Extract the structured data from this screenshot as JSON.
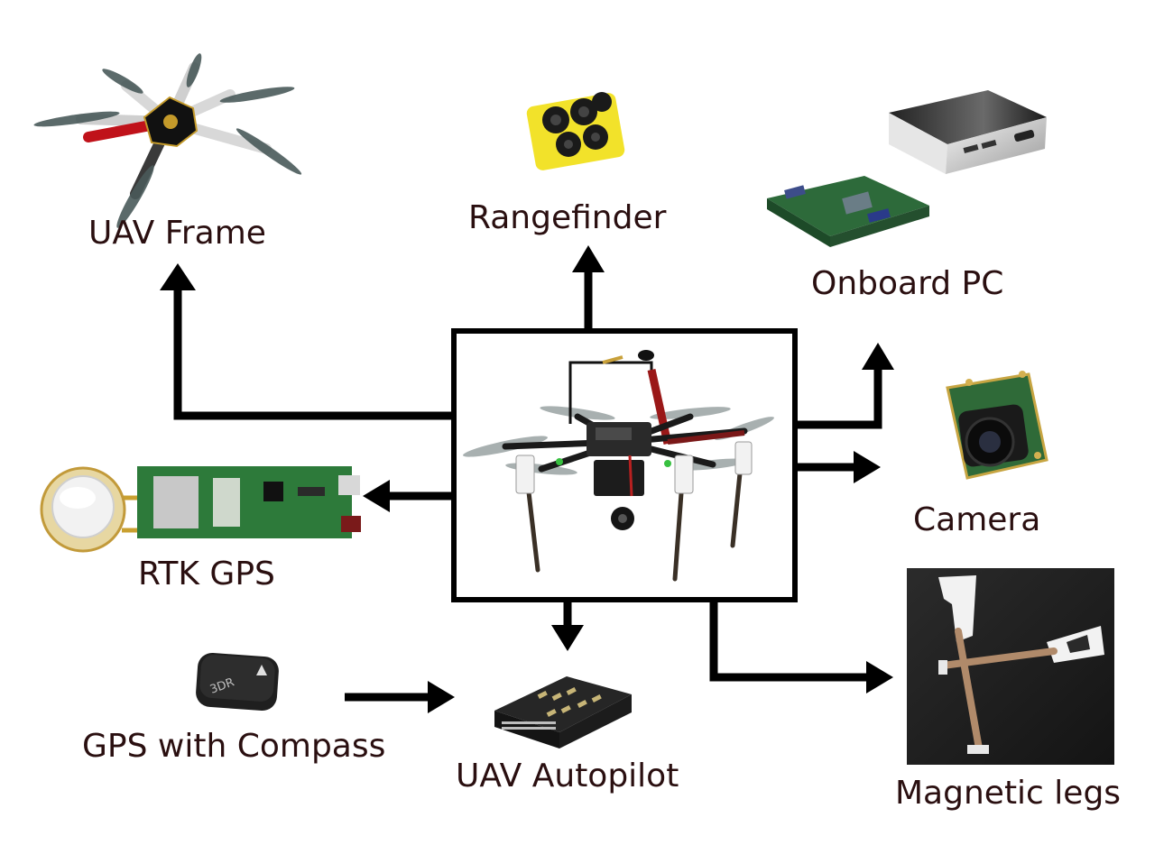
{
  "labels": {
    "uav_frame": "UAV Frame",
    "rangefinder": "Rangefinder",
    "onboard_pc": "Onboard PC",
    "camera": "Camera",
    "rtk_gps": "RTK GPS",
    "gps_with_compass": "GPS with Compass",
    "uav_autopilot": "UAV Autopilot",
    "magnetic_legs": "Magnetic legs"
  },
  "images": {
    "central": "hexacopter-drone",
    "uav_frame": "hexacopter-frame",
    "rangefinder": "ultrasonic-rangefinder",
    "onboard_pc": "intel-nuc-mini-pc",
    "camera": "camera-board",
    "rtk_gps": "rtk-gps-board",
    "gps_with_compass": "3dr-gps-module",
    "uav_autopilot": "pixhawk-autopilot",
    "magnetic_legs": "magnetic-leg-photo"
  },
  "colors": {
    "label_text": "#2a0f10",
    "arrow": "#000000"
  }
}
